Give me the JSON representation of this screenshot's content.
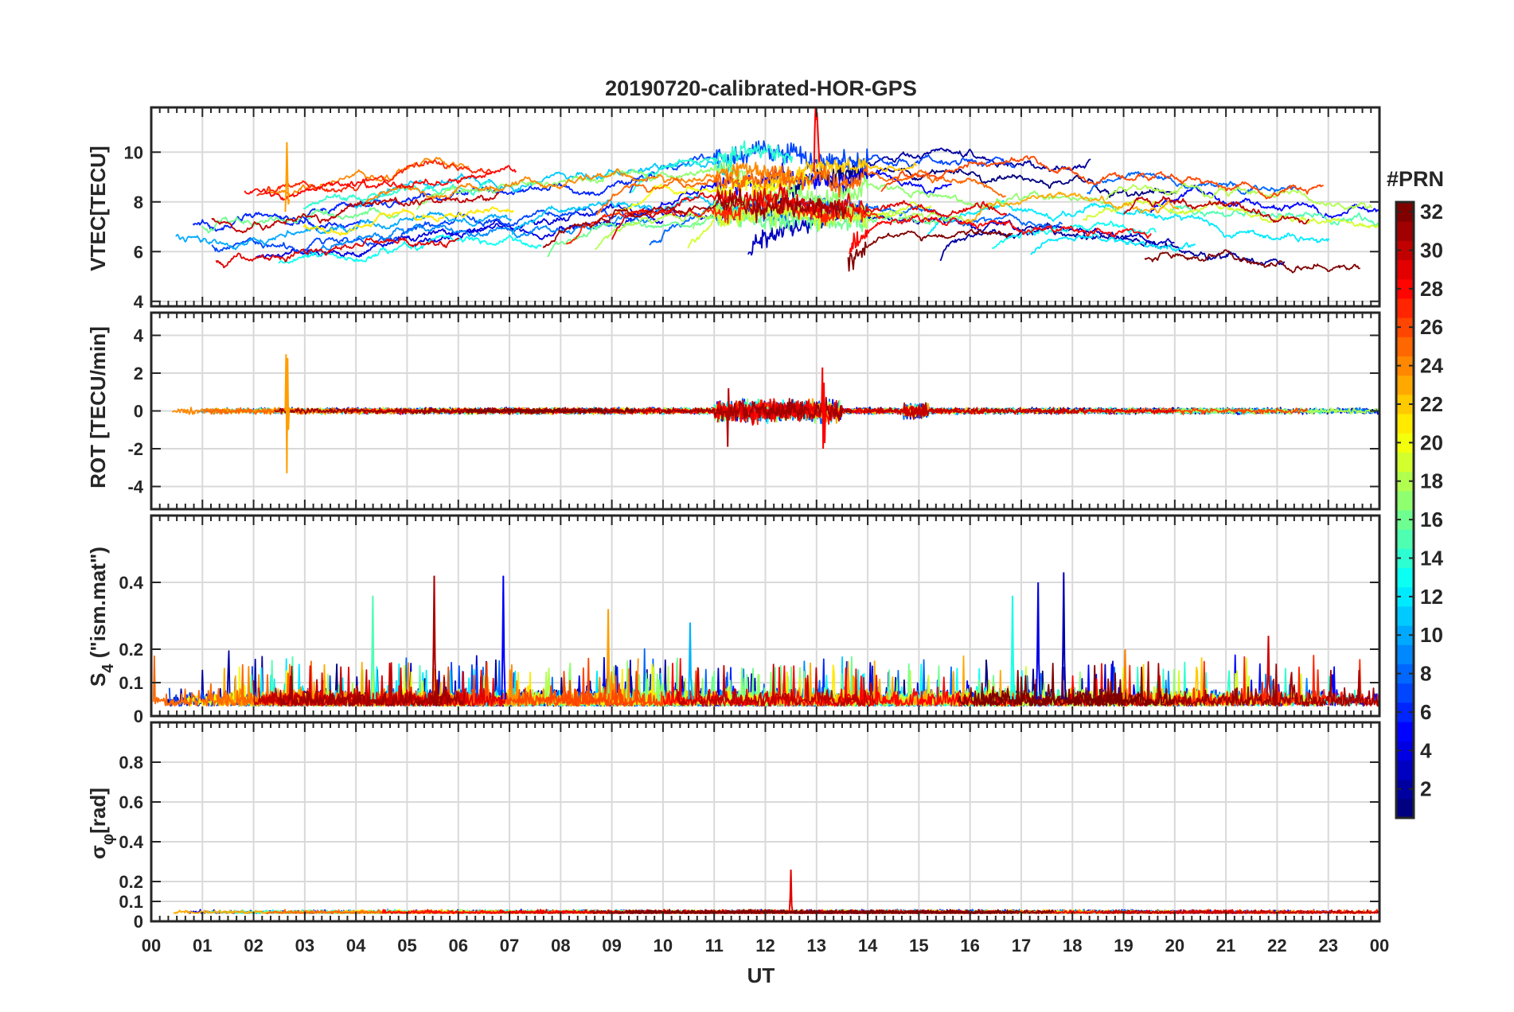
{
  "chart_data": {
    "type": "line",
    "title": "20190720-calibrated-HOR-GPS",
    "xlabel": "UT",
    "x_ticks": [
      "00",
      "01",
      "02",
      "03",
      "04",
      "05",
      "06",
      "07",
      "08",
      "09",
      "10",
      "11",
      "12",
      "13",
      "14",
      "15",
      "16",
      "17",
      "18",
      "19",
      "20",
      "21",
      "22",
      "23",
      "00"
    ],
    "x_range_hours": [
      0,
      24
    ],
    "colorbar": {
      "title": "#PRN",
      "range": [
        1,
        32
      ],
      "ticks": [
        2,
        4,
        6,
        8,
        10,
        12,
        14,
        16,
        18,
        20,
        22,
        24,
        26,
        28,
        30,
        32
      ],
      "colormap": "jet"
    },
    "panels": [
      {
        "id": "vtec",
        "ylabel": "VTEC[TECU]",
        "ylim": [
          3.8,
          11.8
        ],
        "yticks": [
          4,
          6,
          8,
          10
        ],
        "series_summary": "Per-PRN VTEC arcs mostly between 5 and 10 TECU; peak ~11.8 TECU near 13 UT; spike ~10.4 TECU near 02:40 UT"
      },
      {
        "id": "rot",
        "ylabel": "ROT [TECU/min]",
        "ylim": [
          -5.2,
          5.2
        ],
        "yticks": [
          -4,
          -2,
          0,
          2,
          4
        ],
        "series_summary": "ROT near 0 with spikes +3.0/-3.3 near 02:40 UT and +/-2 between 11 and 13 UT"
      },
      {
        "id": "s4",
        "ylabel": "S₄ (\"ism.mat\")",
        "ylabel_main": "S",
        "ylabel_sub": "4",
        "ylabel_rest": " (\"ism.mat\")",
        "ylim": [
          0,
          0.6
        ],
        "yticks": [
          0,
          0.1,
          0.2,
          0.4
        ],
        "series_summary": "S4 baseline 0.02-0.12 with peaks up to ~0.42 around 05:30, 06:50, 17:30 and 17:50 UT"
      },
      {
        "id": "sigma",
        "ylabel": "σφ[rad]",
        "ylabel_main": "σ",
        "ylabel_sub": "φ",
        "ylabel_rest": "[rad]",
        "ylim": [
          0,
          1.0
        ],
        "yticks": [
          0,
          0.1,
          0.2,
          0.4,
          0.6,
          0.8
        ],
        "series_summary": "Phase scintillation baseline ~0.04-0.08 rad with single spike ~0.26 rad near 12:30 UT"
      }
    ]
  }
}
